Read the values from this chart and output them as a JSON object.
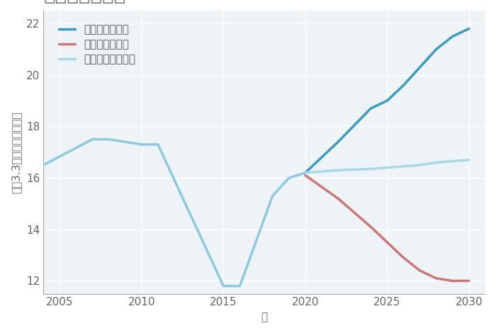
{
  "xlabel": "年",
  "ylabel": "坪（3.3㎡）単価（万円）",
  "background_color": "#ffffff",
  "plot_bg_color": "#eef3f7",
  "grid_color": "#ffffff",
  "ylim": [
    11.5,
    22.5
  ],
  "xlim": [
    2004,
    2031
  ],
  "yticks": [
    12,
    14,
    16,
    18,
    20,
    22
  ],
  "xticks": [
    2005,
    2010,
    2015,
    2020,
    2025,
    2030
  ],
  "historical": {
    "years": [
      2004,
      2007,
      2008,
      2010,
      2011,
      2015,
      2016,
      2018,
      2019,
      2020
    ],
    "values": [
      16.5,
      17.5,
      17.5,
      17.3,
      17.3,
      11.8,
      11.8,
      15.3,
      16.0,
      16.2
    ],
    "color": "#8ec9df",
    "linewidth": 2.5
  },
  "good": {
    "years": [
      2020,
      2022,
      2024,
      2025,
      2026,
      2027,
      2028,
      2029,
      2030
    ],
    "values": [
      16.2,
      17.4,
      18.7,
      19.0,
      19.6,
      20.3,
      21.0,
      21.5,
      21.8
    ],
    "color": "#3d9bbf",
    "linewidth": 2.5,
    "label": "グッドシナリオ"
  },
  "bad": {
    "years": [
      2020,
      2022,
      2024,
      2025,
      2026,
      2027,
      2028,
      2029,
      2030
    ],
    "values": [
      16.1,
      15.2,
      14.1,
      13.5,
      12.9,
      12.4,
      12.1,
      12.0,
      12.0
    ],
    "color": "#cc7777",
    "linewidth": 2.5,
    "label": "バッドシナリオ"
  },
  "normal": {
    "years": [
      2020,
      2022,
      2024,
      2025,
      2026,
      2027,
      2028,
      2029,
      2030
    ],
    "values": [
      16.2,
      16.3,
      16.35,
      16.4,
      16.45,
      16.5,
      16.6,
      16.65,
      16.7
    ],
    "color": "#a8d8ea",
    "linewidth": 2.5,
    "label": "ノーマルシナリオ"
  },
  "title_color": "#777777",
  "title_fontsize": 20,
  "label_fontsize": 11,
  "tick_fontsize": 11,
  "legend_fontsize": 11
}
